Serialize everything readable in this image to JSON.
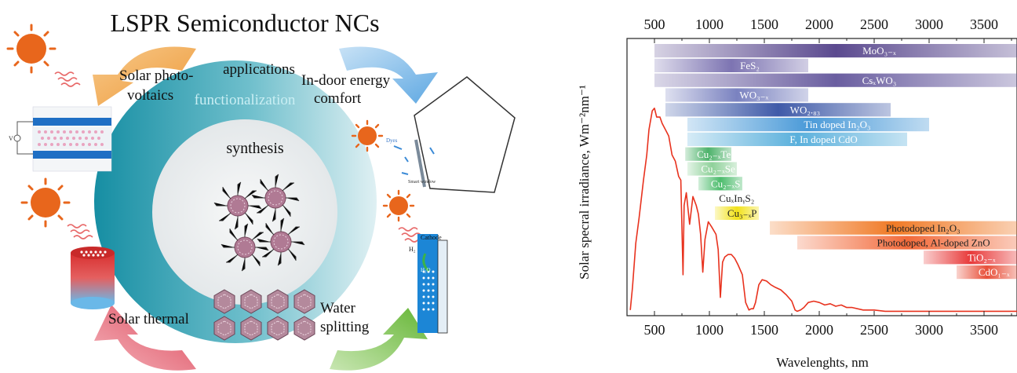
{
  "left": {
    "title": "LSPR Semiconductor NCs",
    "ring_labels": {
      "applications": "applications",
      "functionalization": "functionalization",
      "synthesis": "synthesis"
    },
    "applications": {
      "pv_line1": "Solar photo-",
      "pv_line2": "voltaics",
      "indoor_line1": "In-door energy",
      "indoor_line2": "comfort",
      "thermal": "Solar thermal",
      "water_line1": "Water",
      "water_line2": "splitting"
    },
    "small_labels": {
      "v": "V",
      "dyes": "Dyes",
      "smart_window": "Smart window",
      "cathode": "Cathode",
      "h2": "H₂",
      "h2o": "H₂O"
    },
    "colors": {
      "sun": "#e8661c",
      "ring": "#1a96a8",
      "arrow_orange": "#f0a54a",
      "arrow_blue": "#6fb4e6",
      "arrow_red": "#e2606d",
      "arrow_green": "#7cc24a"
    }
  },
  "chart_data": {
    "type": "line",
    "xlabel": "Wavelenghts, nm",
    "ylabel": "Solar specral irradiance, Wm⁻²nm⁻¹",
    "xlim": [
      250,
      3800
    ],
    "xticks": [
      500,
      1000,
      1500,
      2000,
      2500,
      3000,
      3500
    ],
    "xtick_labels": [
      "500",
      "1000",
      "1500",
      "2000",
      "2500",
      "3000",
      "3500"
    ],
    "series": [
      {
        "x": [
          280,
          300,
          330,
          360,
          400,
          430,
          450,
          480,
          500,
          520,
          550,
          570,
          600,
          630,
          660,
          690,
          720,
          740,
          760,
          770,
          790,
          820,
          850,
          880,
          900,
          920,
          940,
          960,
          990,
          1020,
          1060,
          1080,
          1100,
          1120,
          1140,
          1170,
          1200,
          1230,
          1260,
          1300,
          1330,
          1360,
          1380,
          1400,
          1420,
          1450,
          1480,
          1520,
          1560,
          1600,
          1650,
          1700,
          1750,
          1780,
          1800,
          1830,
          1860,
          1900,
          1950,
          2000,
          2050,
          2100,
          2150,
          2200,
          2250,
          2300,
          2400,
          2500,
          2600,
          2800,
          3000,
          3300,
          3600,
          3800
        ],
        "y": [
          0.02,
          0.2,
          0.55,
          0.75,
          1.05,
          1.25,
          1.45,
          1.6,
          1.62,
          1.55,
          1.55,
          1.5,
          1.45,
          1.4,
          1.25,
          1.2,
          1.08,
          1.05,
          0.3,
          0.85,
          0.95,
          0.7,
          0.92,
          0.85,
          0.78,
          0.62,
          0.32,
          0.58,
          0.72,
          0.68,
          0.62,
          0.5,
          0.12,
          0.4,
          0.44,
          0.46,
          0.46,
          0.43,
          0.38,
          0.3,
          0.08,
          0.02,
          0.03,
          0.03,
          0.08,
          0.22,
          0.26,
          0.25,
          0.22,
          0.2,
          0.18,
          0.14,
          0.09,
          0.02,
          0.01,
          0.02,
          0.04,
          0.08,
          0.09,
          0.08,
          0.06,
          0.07,
          0.05,
          0.06,
          0.04,
          0.04,
          0.02,
          0.02,
          0.01,
          0.01,
          0.01,
          0.01,
          0.01,
          0.01
        ]
      }
    ],
    "bands": [
      {
        "label": "MoO₃₋ₓ",
        "start": 500,
        "end": 3800,
        "color": "#5b4a8f"
      },
      {
        "label": "FeS₂",
        "start": 500,
        "end": 1900,
        "color": "#7d74b2"
      },
      {
        "label": "CsₓWO₃",
        "start": 500,
        "end": 3800,
        "color": "#6a5ea0"
      },
      {
        "label": "WO₃₋ₓ",
        "start": 600,
        "end": 1900,
        "color": "#7a82c0"
      },
      {
        "label": "WO₂.₈₃",
        "start": 600,
        "end": 2650,
        "color": "#3f5aa8"
      },
      {
        "label": "Tin doped In₂O₃",
        "start": 800,
        "end": 3000,
        "color": "#4a9ad8"
      },
      {
        "label": "F, In doped CdO",
        "start": 800,
        "end": 2800,
        "color": "#5ab0dc"
      },
      {
        "label": "Cu₂₋ₓTe",
        "start": 780,
        "end": 1200,
        "color": "#4db26a"
      },
      {
        "label": "Cu₂₋ₓSe",
        "start": 800,
        "end": 1250,
        "color": "#8fd19a"
      },
      {
        "label": "Cu₂₋ₓS",
        "start": 900,
        "end": 1300,
        "color": "#4cbc6c"
      },
      {
        "label": "CuₓInᵧS₂",
        "start": 920,
        "end": 1450,
        "color": "#ffffff"
      },
      {
        "label": "Cu₃₋ₓP",
        "start": 1050,
        "end": 1450,
        "color": "#f2e21a"
      },
      {
        "label": "Photodoped In₂O₃",
        "start": 1550,
        "end": 3800,
        "color": "#f07a26"
      },
      {
        "label": "Photodoped, Al-doped ZnO",
        "start": 1800,
        "end": 3800,
        "color": "#f26a3a"
      },
      {
        "label": "TiO₂₋ₓ",
        "start": 2950,
        "end": 3800,
        "color": "#e83a3a"
      },
      {
        "label": "CdO₁₋ₓ",
        "start": 3250,
        "end": 3800,
        "color": "#e8503a"
      }
    ]
  }
}
